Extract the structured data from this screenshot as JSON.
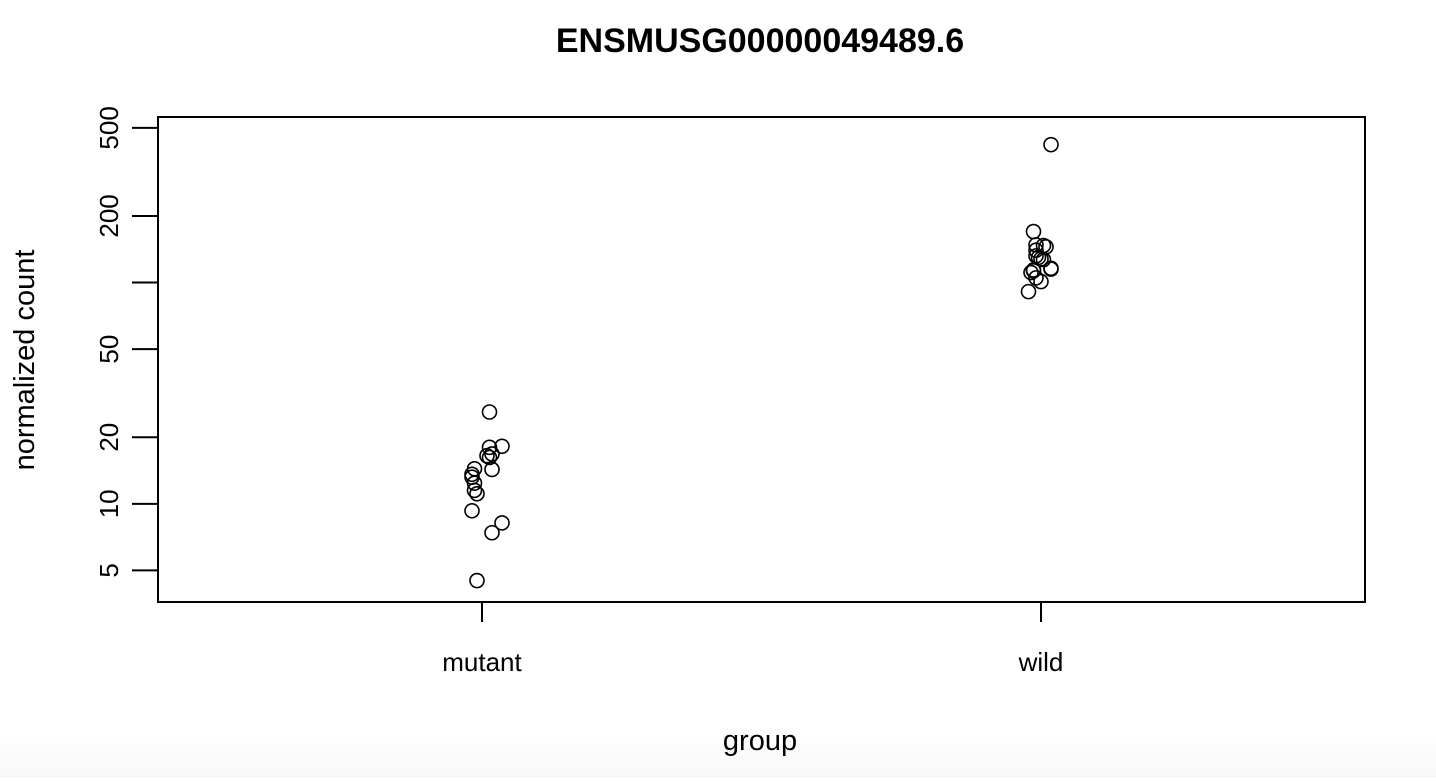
{
  "chart_data": {
    "type": "scatter",
    "title": "ENSMUSG00000049489.6",
    "xlabel": "group",
    "ylabel": "normalized count",
    "y_scale": "log",
    "ylim": [
      3.6,
      560
    ],
    "y_ticks": [
      5,
      10,
      20,
      50,
      200,
      500
    ],
    "y_minor_tick_positions": [
      100
    ],
    "categories": [
      "mutant",
      "wild"
    ],
    "grid": false,
    "legend": "none",
    "marker": "open-circle",
    "series": [
      {
        "category": "mutant",
        "points": [
          {
            "jitter": 0.03,
            "y": 26
          },
          {
            "jitter": 0.08,
            "y": 18.2
          },
          {
            "jitter": 0.03,
            "y": 18.0
          },
          {
            "jitter": 0.04,
            "y": 16.8
          },
          {
            "jitter": 0.03,
            "y": 16.2
          },
          {
            "jitter": 0.02,
            "y": 16.5
          },
          {
            "jitter": 0.04,
            "y": 14.3
          },
          {
            "jitter": -0.03,
            "y": 14.4
          },
          {
            "jitter": -0.04,
            "y": 13.6
          },
          {
            "jitter": -0.04,
            "y": 13.2
          },
          {
            "jitter": -0.03,
            "y": 12.4
          },
          {
            "jitter": -0.03,
            "y": 11.5
          },
          {
            "jitter": -0.02,
            "y": 11.1
          },
          {
            "jitter": -0.04,
            "y": 9.3
          },
          {
            "jitter": 0.08,
            "y": 8.2
          },
          {
            "jitter": 0.04,
            "y": 7.4
          },
          {
            "jitter": -0.02,
            "y": 4.5
          }
        ]
      },
      {
        "category": "wild",
        "points": [
          {
            "jitter": 0.04,
            "y": 420
          },
          {
            "jitter": -0.03,
            "y": 170
          },
          {
            "jitter": -0.02,
            "y": 148
          },
          {
            "jitter": 0.01,
            "y": 147
          },
          {
            "jitter": 0.02,
            "y": 145
          },
          {
            "jitter": -0.02,
            "y": 140
          },
          {
            "jitter": -0.02,
            "y": 132
          },
          {
            "jitter": -0.01,
            "y": 130
          },
          {
            "jitter": 0.0,
            "y": 128
          },
          {
            "jitter": 0.01,
            "y": 127
          },
          {
            "jitter": 0.04,
            "y": 116
          },
          {
            "jitter": 0.04,
            "y": 115
          },
          {
            "jitter": -0.03,
            "y": 114
          },
          {
            "jitter": -0.03,
            "y": 113
          },
          {
            "jitter": -0.04,
            "y": 111
          },
          {
            "jitter": -0.02,
            "y": 105
          },
          {
            "jitter": 0.0,
            "y": 101
          },
          {
            "jitter": -0.05,
            "y": 91
          }
        ]
      }
    ]
  }
}
